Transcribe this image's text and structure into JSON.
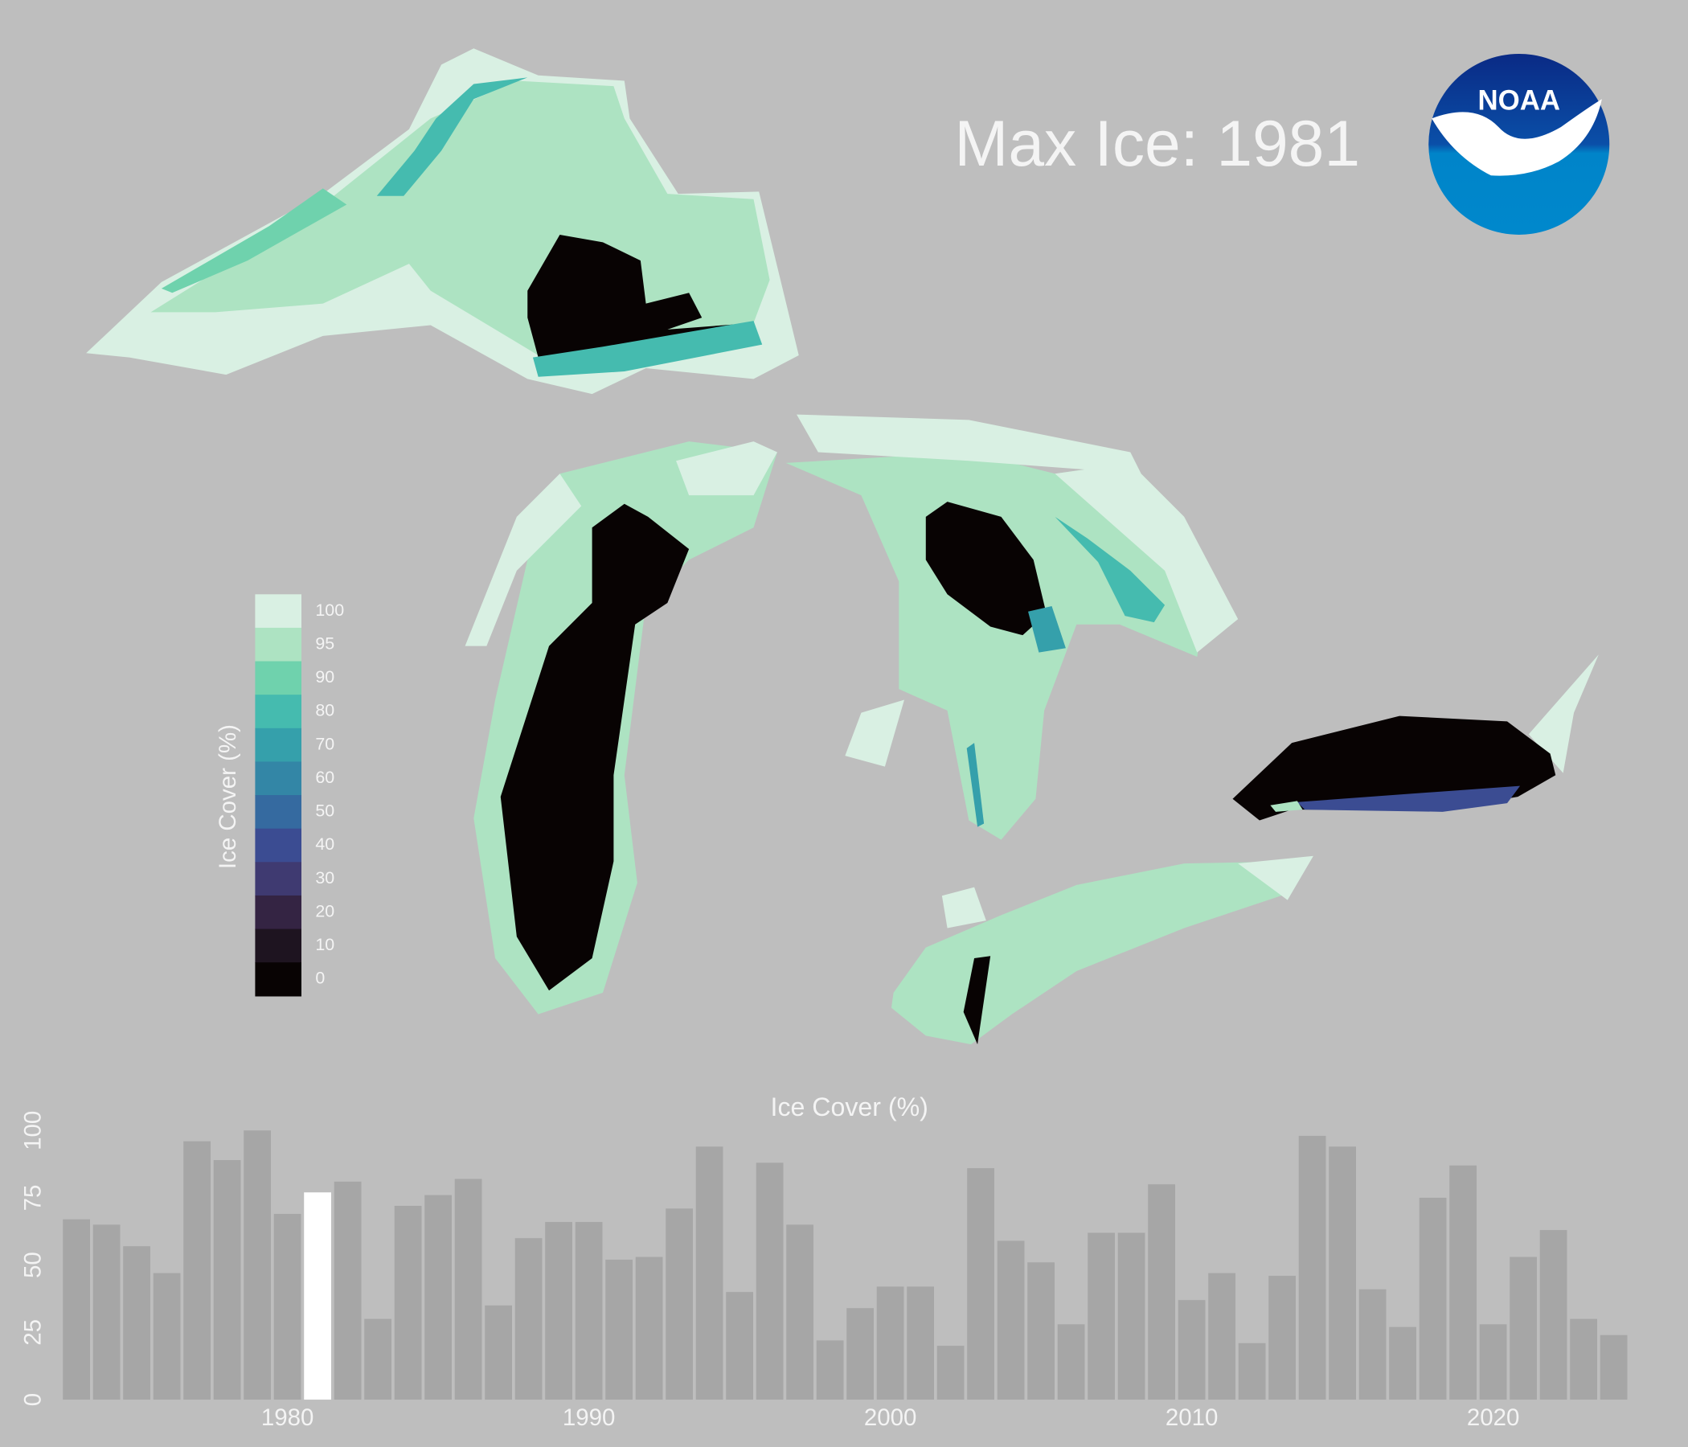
{
  "title": "Max Ice: 1981",
  "logo": "NOAA",
  "legend": {
    "title": "Ice Cover (%)",
    "labels": [
      100,
      95,
      90,
      80,
      70,
      60,
      50,
      40,
      30,
      20,
      10,
      0
    ],
    "colors": [
      "#d9f0e3",
      "#ade3c2",
      "#6fd2ad",
      "#45bbaf",
      "#35a0ab",
      "#3386a6",
      "#356aa0",
      "#3b4c92",
      "#3f3a71",
      "#342443",
      "#1e1420",
      "#080303"
    ]
  },
  "chart_data": {
    "type": "bar",
    "title": "Ice Cover (%)",
    "x": [
      1973,
      1974,
      1975,
      1976,
      1977,
      1978,
      1979,
      1980,
      1981,
      1982,
      1983,
      1984,
      1985,
      1986,
      1987,
      1988,
      1989,
      1990,
      1991,
      1992,
      1993,
      1994,
      1995,
      1996,
      1997,
      1998,
      1999,
      2000,
      2001,
      2002,
      2003,
      2004,
      2005,
      2006,
      2007,
      2008,
      2009,
      2010,
      2011,
      2012,
      2013,
      2014,
      2015,
      2016,
      2017,
      2018,
      2019,
      2020,
      2021,
      2022,
      2023,
      2024
    ],
    "values": [
      67,
      65,
      57,
      47,
      96,
      89,
      100,
      69,
      77,
      81,
      30,
      72,
      76,
      82,
      35,
      60,
      66,
      66,
      52,
      53,
      71,
      94,
      40,
      88,
      65,
      22,
      34,
      42,
      42,
      20,
      86,
      59,
      51,
      28,
      62,
      62,
      80,
      37,
      47,
      21,
      46,
      98,
      94,
      41,
      27,
      75,
      87,
      28,
      53,
      63,
      30,
      24
    ],
    "color": "#a6a6a6",
    "highlight": {
      "x": 1981,
      "color": "#ffffff"
    },
    "xlim": [
      1972.5,
      2024.5
    ],
    "xticks": [
      1980,
      1990,
      2000,
      2010,
      2020
    ],
    "ylim": [
      0,
      100
    ],
    "yticks": [
      0,
      25,
      50,
      75,
      100
    ]
  }
}
